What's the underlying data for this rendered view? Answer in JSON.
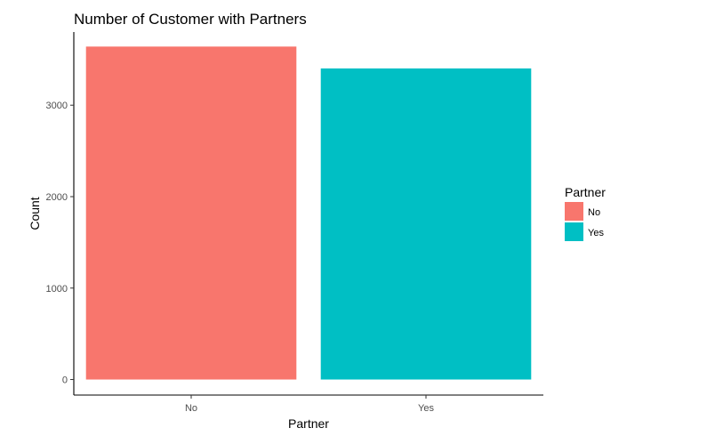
{
  "chart_data": {
    "type": "bar",
    "title": "Number of Customer with Partners",
    "xlabel": "Partner",
    "ylabel": "Count",
    "categories": [
      "No",
      "Yes"
    ],
    "values": [
      3641,
      3402
    ],
    "ylim": [
      -170,
      3800
    ],
    "yticks": [
      0,
      1000,
      2000,
      3000
    ],
    "ytick_labels": [
      "0",
      "1000",
      "2000",
      "3000"
    ],
    "grid": false,
    "legend": {
      "title": "Partner",
      "position": "right",
      "entries": [
        "No",
        "Yes"
      ]
    },
    "colors": [
      "#F8766D",
      "#00BFC4"
    ]
  }
}
